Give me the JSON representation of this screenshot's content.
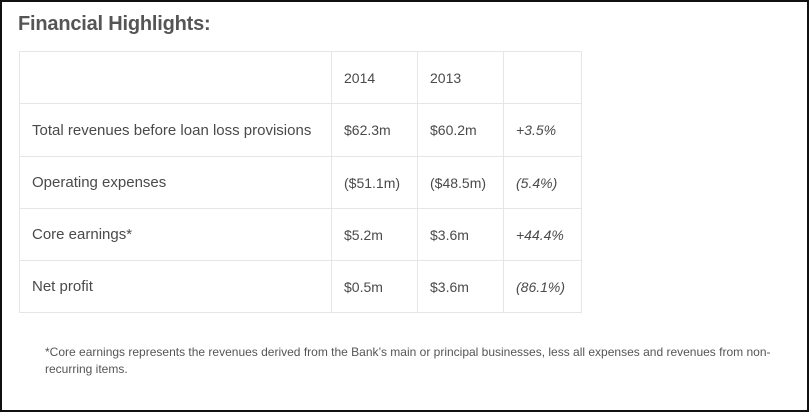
{
  "title": "Financial Highlights:",
  "table": {
    "headers": [
      "",
      "2014",
      "2013",
      ""
    ],
    "rows": [
      [
        "Total revenues before loan loss provisions",
        "$62.3m",
        "$60.2m",
        "+3.5%"
      ],
      [
        "Operating expenses",
        "($51.1m)",
        "($48.5m)",
        "(5.4%)"
      ],
      [
        "Core earnings*",
        "$5.2m",
        "$3.6m",
        "+44.4%"
      ],
      [
        "Net profit",
        "$0.5m",
        "$3.6m",
        "(86.1%)"
      ]
    ]
  },
  "footnote": "*Core earnings represents the revenues derived from the Bank’s main or principal businesses, less all expenses and revenues from non-recurring items."
}
